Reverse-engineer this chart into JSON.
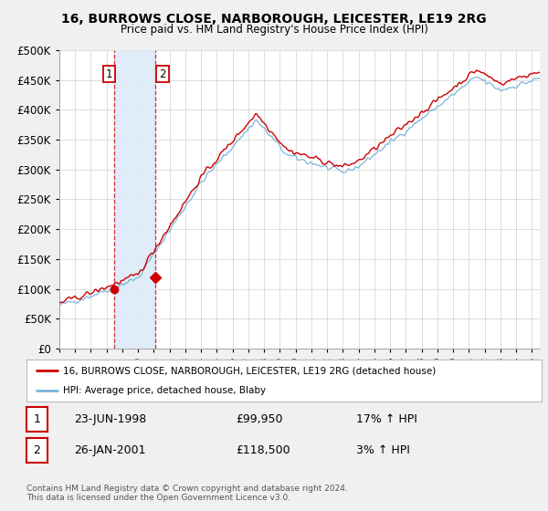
{
  "title": "16, BURROWS CLOSE, NARBOROUGH, LEICESTER, LE19 2RG",
  "subtitle": "Price paid vs. HM Land Registry's House Price Index (HPI)",
  "legend_line1": "16, BURROWS CLOSE, NARBOROUGH, LEICESTER, LE19 2RG (detached house)",
  "legend_line2": "HPI: Average price, detached house, Blaby",
  "sale1_date": "23-JUN-1998",
  "sale1_price": "£99,950",
  "sale1_hpi": "17% ↑ HPI",
  "sale2_date": "26-JAN-2001",
  "sale2_price": "£118,500",
  "sale2_hpi": "3% ↑ HPI",
  "footnote": "Contains HM Land Registry data © Crown copyright and database right 2024.\nThis data is licensed under the Open Government Licence v3.0.",
  "sale1_x": 1998.47,
  "sale1_y": 99950,
  "sale2_x": 2001.07,
  "sale2_y": 118500,
  "hpi_color": "#7ab4d8",
  "price_color": "#cc0000",
  "background_color": "#f0f0f0",
  "plot_bg_color": "#ffffff",
  "ylim": [
    0,
    500000
  ],
  "xlim_start": 1995.0,
  "xlim_end": 2025.5,
  "shaded_color": "#ddeaf7",
  "shaded_alpha": 0.9,
  "shaded_x1": 1998.47,
  "shaded_x2": 2001.07
}
